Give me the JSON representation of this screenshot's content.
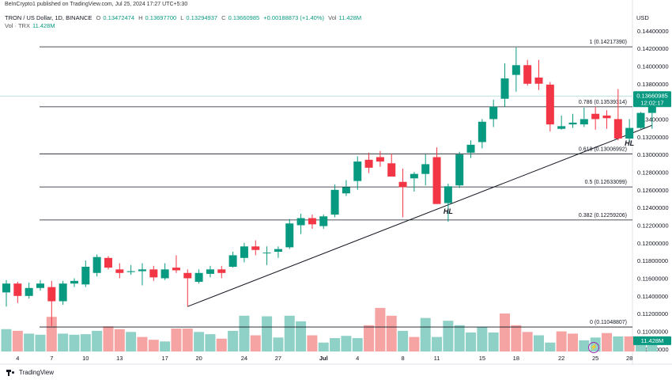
{
  "credit": "BeInCrypto1 published on TradingView.com, Jul 25, 2024 17:27 UTC+5:30",
  "header": {
    "symbol": "TRON / US Dollar, 1D, BINANCE",
    "open_label": "O",
    "open": "0.13472474",
    "high_label": "H",
    "high": "0.13697700",
    "low_label": "L",
    "low": "0.13294937",
    "close_label": "C",
    "close": "0.13660985",
    "change": "+0.00188873 (+1.40%)",
    "vol_label": "Vol",
    "vol": "11.428M",
    "vol_row_label": "Vol · TRX",
    "vol_row_value": "11.428M"
  },
  "currency": "USD",
  "brand": "TradingView",
  "colors": {
    "up": "#089981",
    "down": "#f23645",
    "vol_up": "#8fd1c6",
    "vol_down": "#f5a3a3",
    "price_tag": "#089981",
    "price_line": "#b2dfdb"
  },
  "chart_data": {
    "type": "candlestick",
    "ylim": [
      0.107,
      0.1455
    ],
    "y_ticks": [
      0.108,
      0.11,
      0.112,
      0.114,
      0.116,
      0.118,
      0.12,
      0.122,
      0.124,
      0.126,
      0.128,
      0.13,
      0.132,
      0.134,
      0.136,
      0.138,
      0.14,
      0.142,
      0.144
    ],
    "y_tick_labels": [
      "0.10800000",
      "0.11000000",
      "0.11200000",
      "0.11400000",
      "0.11600000",
      "0.11800000",
      "0.12000000",
      "0.12200000",
      "0.12400000",
      "0.12600000",
      "0.12800000",
      "0.13000000",
      "0.13200000",
      "0.13400000",
      "0.13600000",
      "0.13800000",
      "0.14000000",
      "0.14200000",
      "0.14400000"
    ],
    "x_tick_labels": [
      {
        "label": "4",
        "date": "Jun 4"
      },
      {
        "label": "7",
        "date": "Jun 7"
      },
      {
        "label": "10",
        "date": "Jun 10"
      },
      {
        "label": "13",
        "date": "Jun 13"
      },
      {
        "label": "17",
        "date": "Jun 17"
      },
      {
        "label": "20",
        "date": "Jun 20"
      },
      {
        "label": "24",
        "date": "Jun 24"
      },
      {
        "label": "27",
        "date": "Jun 27"
      },
      {
        "label": "Jul",
        "date": "Jul 1"
      },
      {
        "label": "4",
        "date": "Jul 4"
      },
      {
        "label": "8",
        "date": "Jul 8"
      },
      {
        "label": "11",
        "date": "Jul 11"
      },
      {
        "label": "15",
        "date": "Jul 15"
      },
      {
        "label": "18",
        "date": "Jul 18"
      },
      {
        "label": "22",
        "date": "Jul 22"
      },
      {
        "label": "25",
        "date": "Jul 25"
      },
      {
        "label": "28",
        "date": "Jul 28"
      }
    ],
    "candles": [
      {
        "date": "Jun 3",
        "o": 0.1144,
        "h": 0.1158,
        "l": 0.1128,
        "c": 0.1154
      },
      {
        "date": "Jun 4",
        "o": 0.1154,
        "h": 0.1156,
        "l": 0.1132,
        "c": 0.114
      },
      {
        "date": "Jun 5",
        "o": 0.114,
        "h": 0.1155,
        "l": 0.1137,
        "c": 0.1149
      },
      {
        "date": "Jun 6",
        "o": 0.1149,
        "h": 0.1158,
        "l": 0.1146,
        "c": 0.1154
      },
      {
        "date": "Jun 7",
        "o": 0.115,
        "h": 0.1157,
        "l": 0.1106,
        "c": 0.1134
      },
      {
        "date": "Jun 8",
        "o": 0.1134,
        "h": 0.1157,
        "l": 0.113,
        "c": 0.1154
      },
      {
        "date": "Jun 9",
        "o": 0.1154,
        "h": 0.116,
        "l": 0.115,
        "c": 0.1157
      },
      {
        "date": "Jun 10",
        "o": 0.1153,
        "h": 0.118,
        "l": 0.115,
        "c": 0.1173
      },
      {
        "date": "Jun 11",
        "o": 0.1166,
        "h": 0.1187,
        "l": 0.1162,
        "c": 0.1184
      },
      {
        "date": "Jun 12",
        "o": 0.1183,
        "h": 0.1185,
        "l": 0.117,
        "c": 0.1172
      },
      {
        "date": "Jun 13",
        "o": 0.117,
        "h": 0.1177,
        "l": 0.116,
        "c": 0.1166
      },
      {
        "date": "Jun 14",
        "o": 0.1167,
        "h": 0.1175,
        "l": 0.1164,
        "c": 0.1168
      },
      {
        "date": "Jun 15",
        "o": 0.1168,
        "h": 0.1177,
        "l": 0.1152,
        "c": 0.117
      },
      {
        "date": "Jun 16",
        "o": 0.117,
        "h": 0.1174,
        "l": 0.1157,
        "c": 0.1161
      },
      {
        "date": "Jun 17",
        "o": 0.116,
        "h": 0.1177,
        "l": 0.1158,
        "c": 0.117
      },
      {
        "date": "Jun 18",
        "o": 0.1172,
        "h": 0.1186,
        "l": 0.1166,
        "c": 0.1169
      },
      {
        "date": "Jun 19",
        "o": 0.1166,
        "h": 0.117,
        "l": 0.1128,
        "c": 0.116
      },
      {
        "date": "Jun 20",
        "o": 0.1156,
        "h": 0.117,
        "l": 0.1154,
        "c": 0.1166
      },
      {
        "date": "Jun 21",
        "o": 0.1165,
        "h": 0.1174,
        "l": 0.1161,
        "c": 0.117
      },
      {
        "date": "Jun 22",
        "o": 0.117,
        "h": 0.1174,
        "l": 0.116,
        "c": 0.1166
      },
      {
        "date": "Jun 23",
        "o": 0.1173,
        "h": 0.119,
        "l": 0.1172,
        "c": 0.1186
      },
      {
        "date": "Jun 24",
        "o": 0.1183,
        "h": 0.12,
        "l": 0.1178,
        "c": 0.1196
      },
      {
        "date": "Jun 25",
        "o": 0.1196,
        "h": 0.1203,
        "l": 0.1186,
        "c": 0.1192
      },
      {
        "date": "Jun 26",
        "o": 0.1189,
        "h": 0.1196,
        "l": 0.1175,
        "c": 0.1189
      },
      {
        "date": "Jun 27",
        "o": 0.119,
        "h": 0.1196,
        "l": 0.1183,
        "c": 0.1193
      },
      {
        "date": "Jun 28",
        "o": 0.1195,
        "h": 0.1227,
        "l": 0.1193,
        "c": 0.1222
      },
      {
        "date": "Jun 29",
        "o": 0.122,
        "h": 0.1233,
        "l": 0.121,
        "c": 0.1228
      },
      {
        "date": "Jun 30",
        "o": 0.1228,
        "h": 0.1232,
        "l": 0.1216,
        "c": 0.1221
      },
      {
        "date": "Jul 1",
        "o": 0.1219,
        "h": 0.1232,
        "l": 0.1216,
        "c": 0.123
      },
      {
        "date": "Jul 2",
        "o": 0.1232,
        "h": 0.1266,
        "l": 0.1229,
        "c": 0.126
      },
      {
        "date": "Jul 3",
        "o": 0.1256,
        "h": 0.1271,
        "l": 0.1253,
        "c": 0.1263
      },
      {
        "date": "Jul 4",
        "o": 0.127,
        "h": 0.1298,
        "l": 0.126,
        "c": 0.1292
      },
      {
        "date": "Jul 5",
        "o": 0.1294,
        "h": 0.1302,
        "l": 0.1279,
        "c": 0.1285
      },
      {
        "date": "Jul 6",
        "o": 0.1297,
        "h": 0.1304,
        "l": 0.1286,
        "c": 0.1292
      },
      {
        "date": "Jul 7",
        "o": 0.129,
        "h": 0.1301,
        "l": 0.1276,
        "c": 0.1275
      },
      {
        "date": "Jul 8",
        "o": 0.1269,
        "h": 0.1284,
        "l": 0.1229,
        "c": 0.1263
      },
      {
        "date": "Jul 9",
        "o": 0.1273,
        "h": 0.128,
        "l": 0.1258,
        "c": 0.1278
      },
      {
        "date": "Jul 10",
        "o": 0.1278,
        "h": 0.13,
        "l": 0.1265,
        "c": 0.1289
      },
      {
        "date": "Jul 11",
        "o": 0.1297,
        "h": 0.1308,
        "l": 0.1244,
        "c": 0.1244
      },
      {
        "date": "Jul 12",
        "o": 0.1245,
        "h": 0.1267,
        "l": 0.1224,
        "c": 0.1264
      },
      {
        "date": "Jul 13",
        "o": 0.1265,
        "h": 0.1303,
        "l": 0.1262,
        "c": 0.13
      },
      {
        "date": "Jul 14",
        "o": 0.1302,
        "h": 0.1316,
        "l": 0.1296,
        "c": 0.1311
      },
      {
        "date": "Jul 15",
        "o": 0.1314,
        "h": 0.134,
        "l": 0.1307,
        "c": 0.1337
      },
      {
        "date": "Jul 16",
        "o": 0.134,
        "h": 0.1362,
        "l": 0.1331,
        "c": 0.1354
      },
      {
        "date": "Jul 17",
        "o": 0.1363,
        "h": 0.1403,
        "l": 0.1354,
        "c": 0.1386
      },
      {
        "date": "Jul 18",
        "o": 0.139,
        "h": 0.1421,
        "l": 0.1371,
        "c": 0.1401
      },
      {
        "date": "Jul 19",
        "o": 0.1401,
        "h": 0.1407,
        "l": 0.1378,
        "c": 0.138
      },
      {
        "date": "Jul 20",
        "o": 0.1387,
        "h": 0.1407,
        "l": 0.1373,
        "c": 0.138
      },
      {
        "date": "Jul 21",
        "o": 0.1379,
        "h": 0.1382,
        "l": 0.1326,
        "c": 0.1334
      },
      {
        "date": "Jul 22",
        "o": 0.1329,
        "h": 0.1344,
        "l": 0.1328,
        "c": 0.1332
      },
      {
        "date": "Jul 23",
        "o": 0.1334,
        "h": 0.1346,
        "l": 0.133,
        "c": 0.1336
      },
      {
        "date": "Jul 24",
        "o": 0.1334,
        "h": 0.1353,
        "l": 0.1331,
        "c": 0.134
      },
      {
        "date": "Jul 25",
        "o": 0.1346,
        "h": 0.1354,
        "l": 0.1328,
        "c": 0.134
      },
      {
        "date": "Jul 26",
        "o": 0.1344,
        "h": 0.135,
        "l": 0.1329,
        "c": 0.1341
      },
      {
        "date": "Jul 27",
        "o": 0.134,
        "h": 0.1374,
        "l": 0.1316,
        "c": 0.1318
      },
      {
        "date": "Jul 28",
        "o": 0.1318,
        "h": 0.134,
        "l": 0.1314,
        "c": 0.133
      },
      {
        "date": "Jul 29",
        "o": 0.133,
        "h": 0.1348,
        "l": 0.1329,
        "c": 0.1347
      },
      {
        "date": "Jul 30",
        "o": 0.1347,
        "h": 0.137,
        "l": 0.1329,
        "c": 0.1366
      }
    ],
    "volume": {
      "ymax": 170,
      "values": [
        {
          "v": 40,
          "up": true
        },
        {
          "v": 37,
          "up": false
        },
        {
          "v": 32,
          "up": true
        },
        {
          "v": 30,
          "up": true
        },
        {
          "v": 62,
          "up": false
        },
        {
          "v": 32,
          "up": true
        },
        {
          "v": 30,
          "up": true
        },
        {
          "v": 31,
          "up": true
        },
        {
          "v": 37,
          "up": true
        },
        {
          "v": 45,
          "up": false
        },
        {
          "v": 40,
          "up": false
        },
        {
          "v": 35,
          "up": true
        },
        {
          "v": 26,
          "up": false
        },
        {
          "v": 21,
          "up": false
        },
        {
          "v": 18,
          "up": true
        },
        {
          "v": 41,
          "up": false
        },
        {
          "v": 41,
          "up": false
        },
        {
          "v": 35,
          "up": true
        },
        {
          "v": 31,
          "up": true
        },
        {
          "v": 23,
          "up": false
        },
        {
          "v": 37,
          "up": true
        },
        {
          "v": 64,
          "up": true
        },
        {
          "v": 29,
          "up": false
        },
        {
          "v": 63,
          "up": true
        },
        {
          "v": 25,
          "up": true
        },
        {
          "v": 64,
          "up": true
        },
        {
          "v": 54,
          "up": true
        },
        {
          "v": 29,
          "up": false
        },
        {
          "v": 16,
          "up": true
        },
        {
          "v": 24,
          "up": true
        },
        {
          "v": 28,
          "up": true
        },
        {
          "v": 24,
          "up": true
        },
        {
          "v": 47,
          "up": false
        },
        {
          "v": 78,
          "up": false
        },
        {
          "v": 64,
          "up": false
        },
        {
          "v": 37,
          "up": true
        },
        {
          "v": 26,
          "up": false
        },
        {
          "v": 60,
          "up": true
        },
        {
          "v": 26,
          "up": true
        },
        {
          "v": 55,
          "up": true
        },
        {
          "v": 47,
          "up": true
        },
        {
          "v": 34,
          "up": true
        },
        {
          "v": 44,
          "up": true
        },
        {
          "v": 34,
          "up": true
        },
        {
          "v": 68,
          "up": false
        },
        {
          "v": 47,
          "up": false
        },
        {
          "v": 35,
          "up": false
        },
        {
          "v": 29,
          "up": true
        },
        {
          "v": 16,
          "up": true
        },
        {
          "v": 36,
          "up": false
        },
        {
          "v": 32,
          "up": false
        },
        {
          "v": 20,
          "up": true
        },
        {
          "v": 25,
          "up": true
        },
        {
          "v": 33,
          "up": false
        },
        {
          "v": 27,
          "up": true
        },
        {
          "v": 27,
          "up": false
        },
        {
          "v": 18,
          "up": true
        },
        {
          "v": 13,
          "up": true
        }
      ]
    },
    "fib_levels": [
      {
        "label": "1 (0.14217390)",
        "value": 0.1421739
      },
      {
        "label": "0.786 (0.13539314)",
        "value": 0.13539314
      },
      {
        "label": "0.618 (0.13006992)",
        "value": 0.13006992
      },
      {
        "label": "0.5 (0.12633099)",
        "value": 0.12633099
      },
      {
        "label": "0.382 (0.12259206)",
        "value": 0.12259206
      },
      {
        "label": "0 (0.11048807)",
        "value": 0.11048807
      }
    ],
    "trendline": [
      {
        "date": "Jun 19",
        "price": 0.1128
      },
      {
        "date": "Jul 30",
        "price": 0.1333
      }
    ],
    "annotations": [
      {
        "text": "HL",
        "date": "Jul 12",
        "price": 0.1233
      },
      {
        "text": "HL",
        "date": "Jul 28",
        "price": 0.131
      }
    ],
    "last_price_label": "0.13660985",
    "countdown_label": "12:02:17",
    "volume_label": "11.428M"
  }
}
